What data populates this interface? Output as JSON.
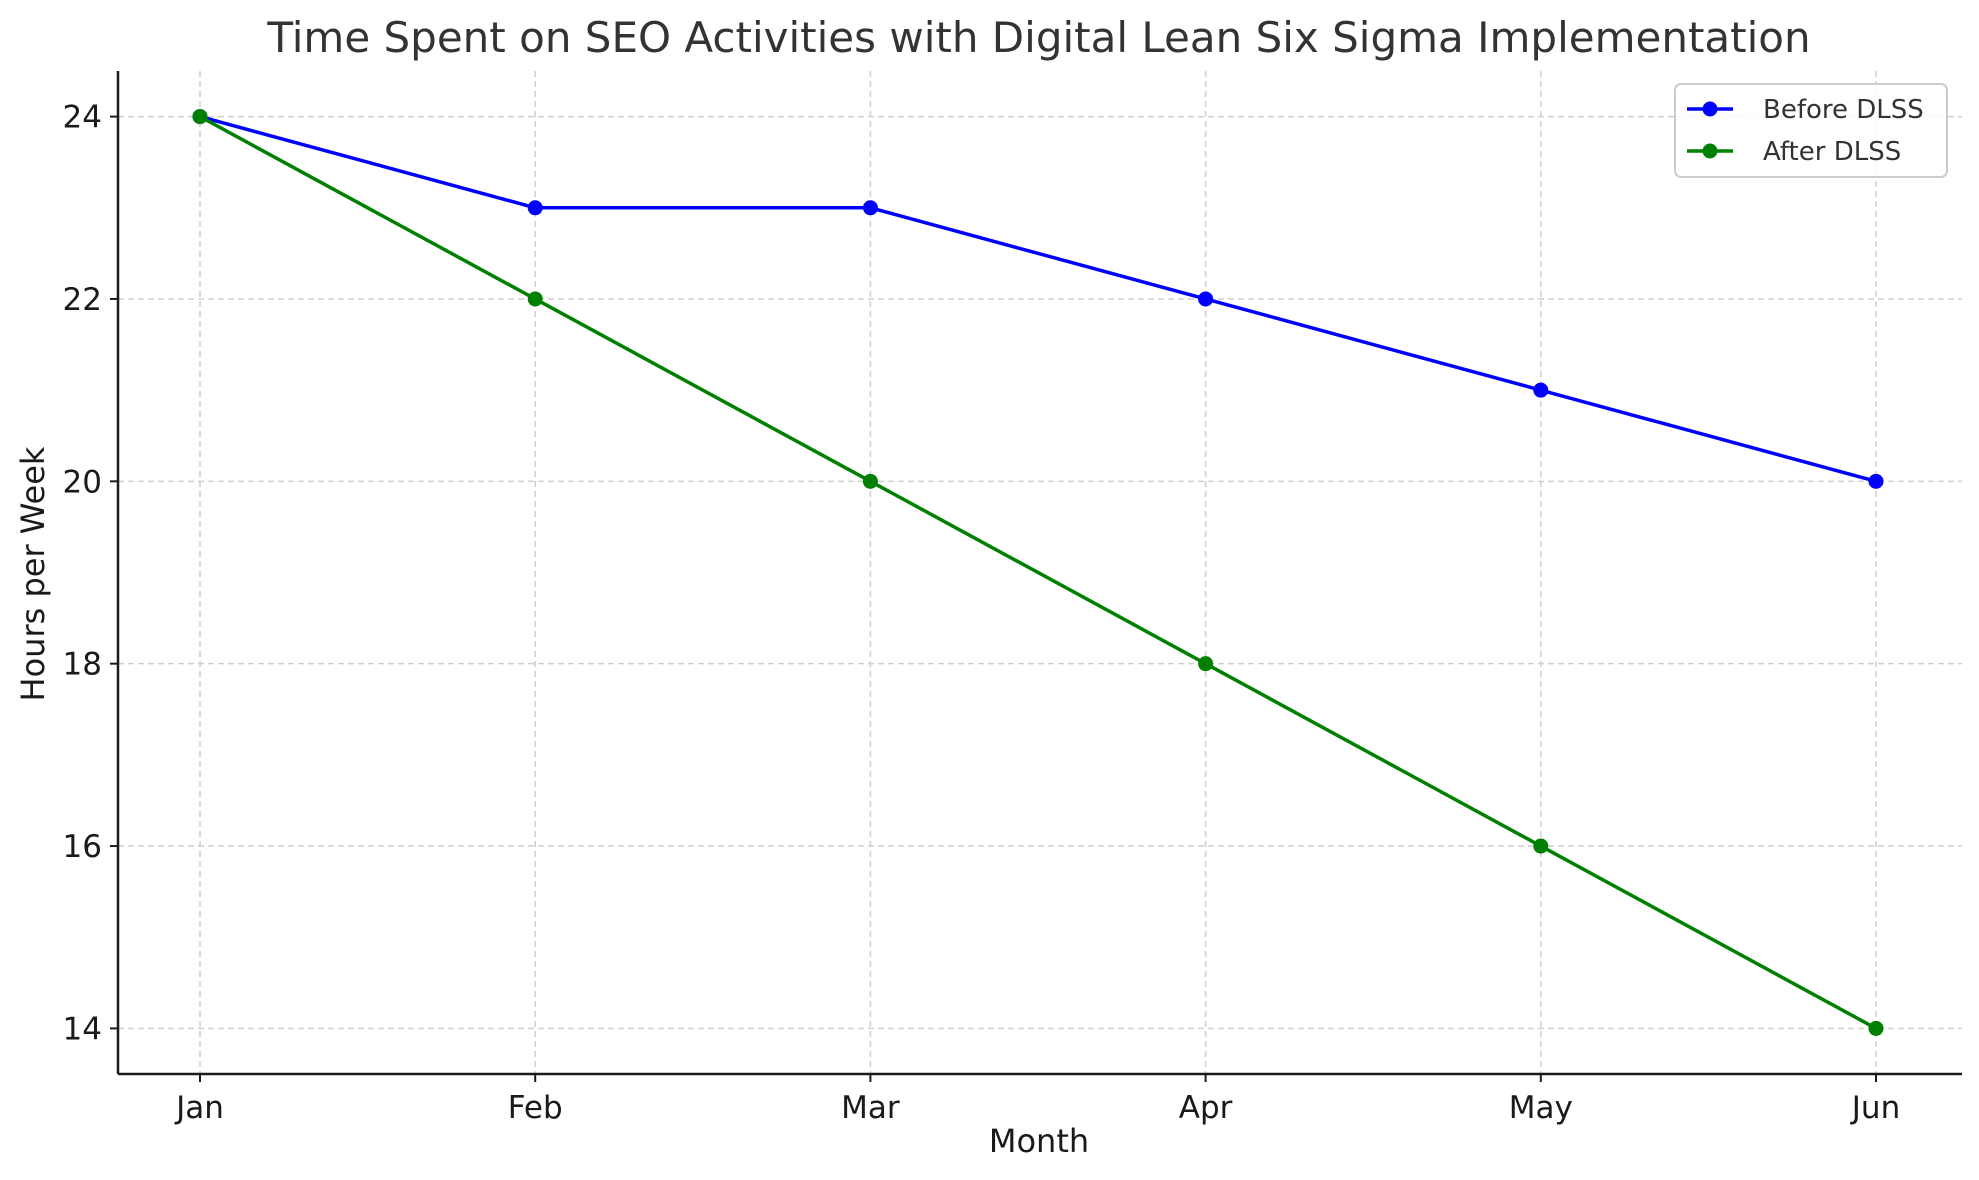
{
  "chart_data": {
    "type": "line",
    "title": "Time Spent on SEO Activities with Digital Lean Six Sigma Implementation",
    "xlabel": "Month",
    "ylabel": "Hours per Week",
    "categories": [
      "Jan",
      "Feb",
      "Mar",
      "Apr",
      "May",
      "Jun"
    ],
    "ylim": [
      13.5,
      24.5
    ],
    "yticks": [
      14,
      16,
      18,
      20,
      22,
      24
    ],
    "grid": true,
    "legend_position": "top-right",
    "series": [
      {
        "name": "Before DLSS",
        "color": "#0000ff",
        "values": [
          24,
          23,
          23,
          22,
          21,
          20
        ]
      },
      {
        "name": "After DLSS",
        "color": "#008000",
        "values": [
          24,
          22,
          20,
          18,
          16,
          14
        ]
      }
    ]
  }
}
